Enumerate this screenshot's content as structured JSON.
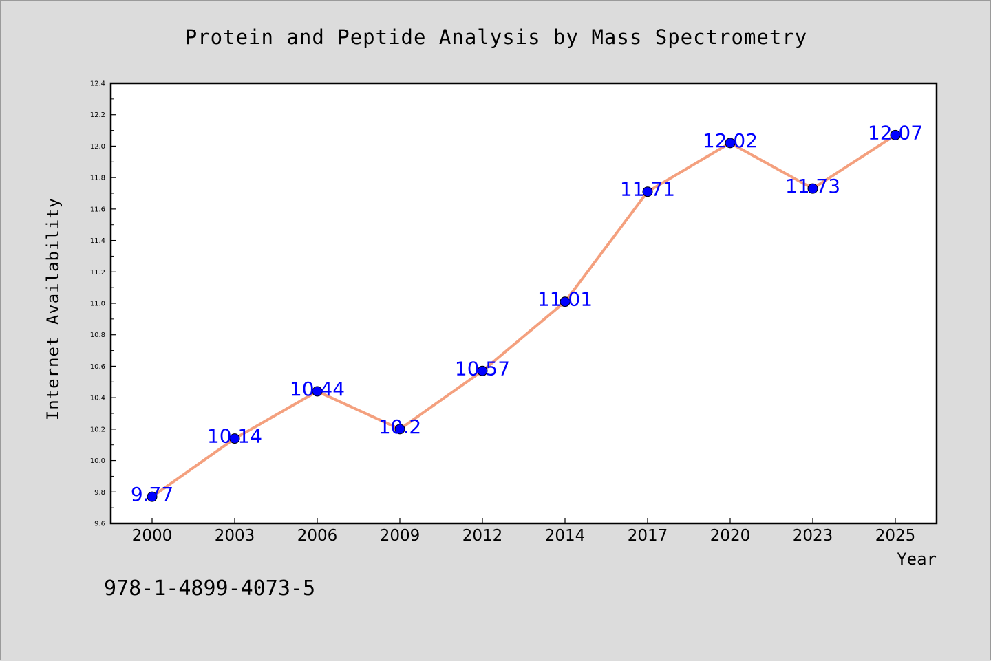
{
  "chart_data": {
    "type": "line",
    "title": "Protein and Peptide Analysis by Mass Spectrometry",
    "xlabel": "Year",
    "ylabel": "Internet Availability",
    "categories": [
      "2000",
      "2003",
      "2006",
      "2009",
      "2012",
      "2014",
      "2017",
      "2020",
      "2023",
      "2025"
    ],
    "series": [
      {
        "values": [
          9.77,
          10.14,
          10.44,
          10.2,
          10.57,
          11.01,
          11.71,
          12.02,
          11.73,
          12.07
        ]
      }
    ],
    "data_labels": [
      "9.77",
      "10.14",
      "10.44",
      "10.2",
      "10.57",
      "11.01",
      "11.71",
      "12.02",
      "11.73",
      "12.07"
    ],
    "ylim": [
      9.6,
      12.4
    ],
    "yticks": [
      "9.6",
      "9.8",
      "10.0",
      "10.2",
      "10.4",
      "10.6",
      "10.8",
      "11.0",
      "11.2",
      "11.4",
      "11.6",
      "11.8",
      "12.0",
      "12.2",
      "12.4"
    ],
    "grid": false,
    "legend": "none",
    "colors": {
      "line": "#f4a07e",
      "marker": "#0000ff",
      "label": "#0000ff",
      "background": "#dcdcdc",
      "plot_bg": "#ffffff"
    }
  },
  "footer_text": "978-1-4899-4073-5"
}
